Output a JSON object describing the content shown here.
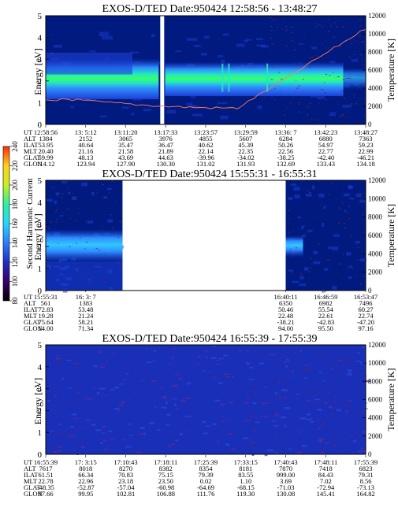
{
  "colors": {
    "background": "#001a80",
    "band_low": "#1c3fd6",
    "band_mid": "#2f8cff",
    "band_high": "#23e6c3",
    "band_peak": "#37ff6a",
    "temperature_trace": "#ff7a5a",
    "noise": "#8a1f3a"
  },
  "colorbar": {
    "label": "Second Harmonic Current",
    "ticks": [
      "80",
      "100",
      "120",
      "140",
      "160",
      "180",
      "200",
      "220",
      "240"
    ],
    "stops": [
      "#000000",
      "#3a0070",
      "#1b2fc0",
      "#2e7cff",
      "#23d7ff",
      "#2cf0a0",
      "#c8f020",
      "#ffd21a",
      "#ff2a10"
    ]
  },
  "row_labels": [
    "UT",
    "ALT",
    "ILAT",
    "MLT",
    "GLAT",
    "GLON"
  ],
  "chart_data": [
    {
      "type": "heatmap",
      "title": "EXOS-D/TED   Date:950424   12:58:56 - 13:48:27",
      "ylabel": "Energy [eV]",
      "y2label": "Temperature [K]",
      "ylim": [
        0,
        5
      ],
      "y2lim": [
        0,
        12000
      ],
      "yticks": [
        "0",
        "1",
        "2",
        "3",
        "4",
        "5"
      ],
      "y2ticks": [
        "0",
        "2000",
        "4000",
        "6000",
        "8000",
        "10000",
        "12000"
      ],
      "band_center_ev": 2.1,
      "gap_fraction": [
        0.353,
        0.373
      ],
      "x_fraction": [
        0,
        0.125,
        0.25,
        0.375,
        0.5,
        0.625,
        0.75,
        0.875,
        1
      ],
      "ephemeris": {
        "UT": [
          "12:58:56",
          "13: 5:12",
          "13:11:20",
          "13:17:33",
          "13:23:57",
          "13:29:59",
          "13:36: 7",
          "13:42:23",
          "13:48:27"
        ],
        "ALT": [
          "1384",
          "2152",
          "3065",
          "3976",
          "4855",
          "5607",
          "6284",
          "6880",
          "7363"
        ],
        "ILAT": [
          "53.95",
          "40.64",
          "35.47",
          "36.47",
          "40.62",
          "45.39",
          "50.26",
          "54.97",
          "59.23"
        ],
        "MLT": [
          "20.40",
          "21.16",
          "21.58",
          "21.89",
          "22.14",
          "22.35",
          "22.56",
          "22.77",
          "22.99"
        ],
        "GLAT": [
          "59.99",
          "48.13",
          "43.69",
          "44.63",
          "-39.96",
          "-34.02",
          "-38.25",
          "-42.40",
          "-46.21"
        ],
        "GLON": [
          "114.12",
          "123.94",
          "127.90",
          "130.30",
          "131.02",
          "131.93",
          "132.69",
          "133.43",
          "134.18"
        ]
      }
    },
    {
      "type": "heatmap",
      "title": "EXOS-D/TED   Date:950424   15:55:31 - 16:55:31",
      "ylabel": "Energy [eV]",
      "y2label": "Temperature [K]",
      "ylim": [
        0,
        5
      ],
      "y2lim": [
        0,
        12000
      ],
      "yticks": [
        "0",
        "1",
        "2",
        "3",
        "4",
        "5"
      ],
      "y2ticks": [
        "0",
        "2000",
        "4000",
        "6000",
        "8000",
        "10000",
        "12000"
      ],
      "band_center_ev": 2.0,
      "data_segments_fraction": [
        [
          0,
          0.24
        ],
        [
          0.75,
          1
        ]
      ],
      "ephemeris_columns": [
        {
          "x_fraction": 0,
          "UT": "15:55:31",
          "ALT": "561",
          "ILAT": "72.83",
          "MLT": "19.28",
          "GLAT": "75.64",
          "GLON": "14.00"
        },
        {
          "x_fraction": 0.125,
          "UT": "16: 3: 7",
          "ALT": "1383",
          "ILAT": "53.48",
          "MLT": "21.24",
          "GLAT": "58.21",
          "GLON": "71.34"
        },
        {
          "x_fraction": 0.75,
          "UT": "16:40:11",
          "ALT": "6350",
          "ILAT": "50.46",
          "MLT": "22.48",
          "GLAT": "-38.21",
          "GLON": "94.00"
        },
        {
          "x_fraction": 0.875,
          "UT": "16:46:59",
          "ALT": "6982",
          "ILAT": "55.54",
          "MLT": "22.61",
          "GLAT": "-42.83",
          "GLON": "95.50"
        },
        {
          "x_fraction": 1,
          "UT": "16:53:47",
          "ALT": "7496",
          "ILAT": "60.27",
          "MLT": "22.74",
          "GLAT": "-47.20",
          "GLON": "97.16"
        }
      ]
    },
    {
      "type": "heatmap",
      "title": "EXOS-D/TED   Date:950424   16:55:39 - 17:55:39",
      "ylabel": "Energy [eV]",
      "y2label": "Temperature [K]",
      "ylim": [
        0,
        5
      ],
      "y2lim": [
        0,
        12000
      ],
      "yticks": [
        "0",
        "1",
        "2",
        "3",
        "4",
        "5"
      ],
      "y2ticks": [
        "0",
        "2000",
        "4000",
        "6000",
        "8000",
        "10000",
        "12000"
      ],
      "x_fraction": [
        0,
        0.125,
        0.25,
        0.375,
        0.5,
        0.625,
        0.75,
        0.875,
        1
      ],
      "ephemeris": {
        "UT": [
          "16:55:39",
          "17: 3:15",
          "17:10:43",
          "17:18:11",
          "17:25:39",
          "17:33:15",
          "17:40:43",
          "17:48:11",
          "17:55:39"
        ],
        "ALT": [
          "7617",
          "8018",
          "8270",
          "8382",
          "8354",
          "8181",
          "7870",
          "7418",
          "6823"
        ],
        "ILAT": [
          "61.51",
          "66.34",
          "70.83",
          "75.15",
          "79.39",
          "83.55",
          "999.00",
          "84.43",
          "79.31"
        ],
        "MLT": [
          "22.78",
          "22.96",
          "23.18",
          "23.50",
          "0.02",
          "1.10",
          "3.69",
          "7.02",
          "8.56"
        ],
        "GLAT": [
          "-48.35",
          "-52.87",
          "-57.04",
          "-60.98",
          "-64.69",
          "-68.15",
          "-71.03",
          "-72.94",
          "-73.13"
        ],
        "GLON": [
          "97.66",
          "99.95",
          "102.81",
          "106.88",
          "111.76",
          "119.30",
          "130.08",
          "145.41",
          "164.82"
        ]
      }
    }
  ]
}
